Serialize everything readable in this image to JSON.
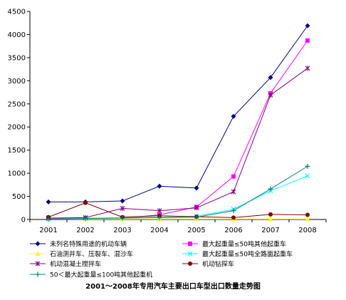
{
  "chart_data": {
    "type": "line",
    "title": "2001～2008年专用汽车主要出口车型出口数量走势图",
    "xlabel": "",
    "ylabel": "",
    "x": [
      "2001",
      "2002",
      "2003",
      "2004",
      "2005",
      "2006",
      "2007",
      "2008"
    ],
    "ylim": [
      0,
      4500
    ],
    "yticks": [
      "0",
      "500",
      "1000",
      "1500",
      "2000",
      "2500",
      "3000",
      "3500",
      "4000",
      "4500"
    ],
    "grid": false,
    "legend_position": "bottom",
    "series": [
      {
        "name": "未列名特殊用途的机动车辆",
        "color": "#000080",
        "marker": "diamond",
        "values": [
          380,
          380,
          400,
          720,
          680,
          2230,
          3070,
          4190
        ]
      },
      {
        "name": "最大起重量≤50吨其他起重车",
        "color": "#ff00ff",
        "marker": "square",
        "values": [
          20,
          30,
          30,
          100,
          270,
          930,
          2730,
          3870
        ]
      },
      {
        "name": "石油测井车、压裂车、混沙车",
        "color": "#ffff00",
        "marker": "triangle",
        "values": [
          10,
          10,
          10,
          10,
          10,
          10,
          10,
          10
        ]
      },
      {
        "name": "最大起重量≤50吨全路面起重车",
        "color": "#00ffff",
        "marker": "x",
        "values": [
          10,
          30,
          40,
          50,
          70,
          220,
          620,
          940
        ]
      },
      {
        "name": "机动混凝土搅拌车",
        "color": "#800080",
        "marker": "star",
        "values": [
          30,
          40,
          240,
          190,
          250,
          600,
          2690,
          3270
        ]
      },
      {
        "name": "机动钻探车",
        "color": "#800000",
        "marker": "circle",
        "values": [
          50,
          360,
          50,
          80,
          60,
          40,
          110,
          100
        ]
      },
      {
        "name": "50＜最大起重量≤100吨其他起重机",
        "color": "#008080",
        "marker": "plus",
        "values": [
          10,
          20,
          30,
          40,
          50,
          190,
          660,
          1150
        ]
      }
    ]
  }
}
